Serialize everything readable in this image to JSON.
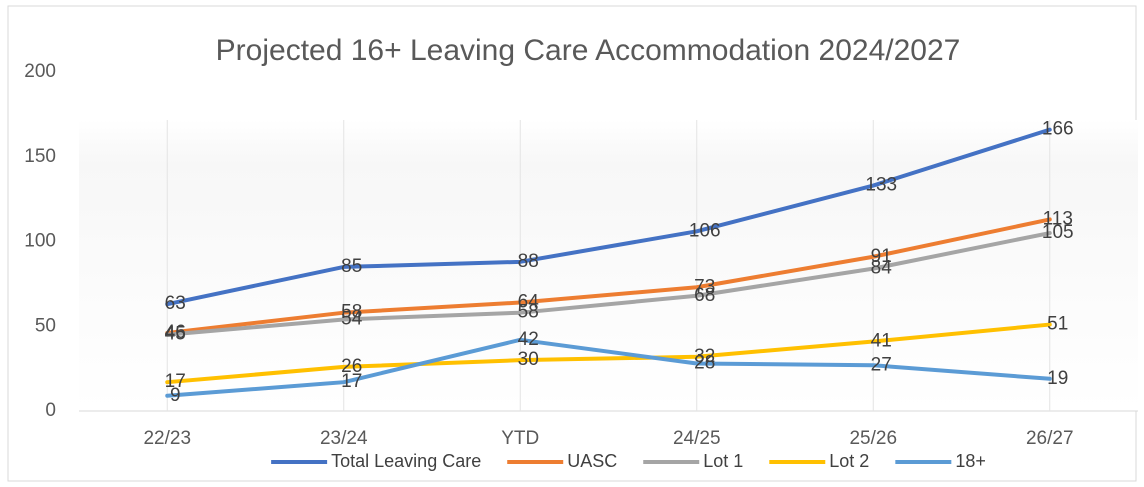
{
  "chart_data": {
    "type": "line",
    "title": "Projected 16+ Leaving Care Accommodation 2024/2027",
    "categories": [
      "22/23",
      "23/24",
      "YTD",
      "24/25",
      "25/26",
      "26/27"
    ],
    "series": [
      {
        "name": "Total Leaving Care",
        "color": "#4472c4",
        "values": [
          63,
          85,
          88,
          106,
          133,
          166
        ]
      },
      {
        "name": "UASC",
        "color": "#ed7d31",
        "values": [
          46,
          58,
          64,
          73,
          91,
          113
        ]
      },
      {
        "name": "Lot 1",
        "color": "#a5a5a5",
        "values": [
          45,
          54,
          58,
          68,
          84,
          105
        ]
      },
      {
        "name": "Lot 2",
        "color": "#ffc000",
        "values": [
          17,
          26,
          30,
          32,
          41,
          51
        ]
      },
      {
        "name": "18+",
        "color": "#5b9bd5",
        "values": [
          9,
          17,
          42,
          28,
          27,
          19
        ]
      }
    ],
    "ylim": [
      0,
      200
    ],
    "yticks": [
      0,
      50,
      100,
      150,
      200
    ],
    "grid": false,
    "legend": "bottom"
  }
}
